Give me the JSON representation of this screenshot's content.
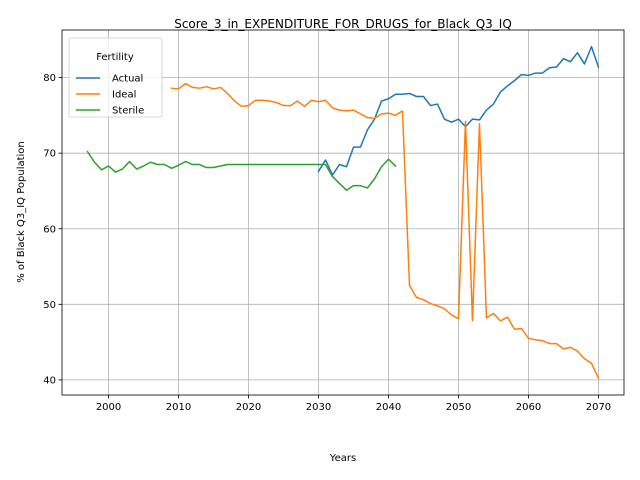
{
  "chart_data": {
    "type": "line",
    "title": "Score_3_in_EXPENDITURE_FOR_DRUGS_for_Black_Q3_IQ",
    "xlabel": "Years",
    "ylabel": "% of Black Q3_IQ Population",
    "xlim": [
      1993.35,
      2073.65
    ],
    "ylim": [
      38.0,
      86.3
    ],
    "xticks": [
      2000,
      2010,
      2020,
      2030,
      2040,
      2050,
      2060,
      2070
    ],
    "yticks": [
      40,
      50,
      60,
      70,
      80
    ],
    "grid": true,
    "legend": {
      "title": "Fertility",
      "position": "upper-left"
    },
    "series": [
      {
        "name": "Actual",
        "color": "#1f77b4",
        "x": [
          2030,
          2031,
          2032,
          2033,
          2034,
          2035,
          2036,
          2037,
          2038,
          2039,
          2040,
          2041,
          2042,
          2043,
          2044,
          2045,
          2046,
          2047,
          2048,
          2049,
          2050,
          2051,
          2052,
          2053,
          2054,
          2055,
          2056,
          2057,
          2058,
          2059,
          2060,
          2061,
          2062,
          2063,
          2064,
          2065,
          2066,
          2067,
          2068,
          2069,
          2070
        ],
        "y": [
          67.6,
          69.1,
          67.1,
          68.5,
          68.2,
          70.8,
          70.8,
          73.1,
          74.5,
          76.9,
          77.2,
          77.8,
          77.8,
          77.9,
          77.5,
          77.5,
          76.3,
          76.5,
          74.5,
          74.1,
          74.5,
          73.5,
          74.5,
          74.4,
          75.7,
          76.5,
          78.1,
          78.9,
          79.6,
          80.4,
          80.3,
          80.6,
          80.6,
          81.3,
          81.4,
          82.5,
          82.1,
          83.3,
          81.8,
          84.1,
          81.4
        ]
      },
      {
        "name": "Ideal",
        "color": "#ff7f0e",
        "x": [
          2009,
          2010,
          2011,
          2012,
          2013,
          2014,
          2015,
          2016,
          2017,
          2018,
          2019,
          2020,
          2021,
          2022,
          2023,
          2024,
          2025,
          2026,
          2027,
          2028,
          2029,
          2030,
          2031,
          2032,
          2033,
          2034,
          2035,
          2036,
          2037,
          2038,
          2039,
          2040,
          2041,
          2042,
          2043,
          2044,
          2045,
          2046,
          2047,
          2048,
          2049,
          2050,
          2051,
          2052,
          2053,
          2054,
          2055,
          2056,
          2057,
          2058,
          2059,
          2060,
          2061,
          2062,
          2063,
          2064,
          2065,
          2066,
          2067,
          2068,
          2069,
          2070
        ],
        "y": [
          78.6,
          78.5,
          79.2,
          78.7,
          78.6,
          78.8,
          78.5,
          78.7,
          77.9,
          76.9,
          76.2,
          76.3,
          77.0,
          77.0,
          76.9,
          76.7,
          76.3,
          76.3,
          76.9,
          76.2,
          77.0,
          76.8,
          77.0,
          76.0,
          75.7,
          75.6,
          75.7,
          75.2,
          74.7,
          74.6,
          75.2,
          75.3,
          75.0,
          75.6,
          52.5,
          50.9,
          50.6,
          50.1,
          49.8,
          49.4,
          48.6,
          48.1,
          74.2,
          47.8,
          73.9,
          48.2,
          48.8,
          47.8,
          48.3,
          46.7,
          46.8,
          45.5,
          45.3,
          45.2,
          44.8,
          44.8,
          44.1,
          44.3,
          43.8,
          42.8,
          42.2,
          40.2
        ]
      },
      {
        "name": "Sterile",
        "color": "#2ca02c",
        "x": [
          1997,
          1998,
          1999,
          2000,
          2001,
          2002,
          2003,
          2004,
          2005,
          2006,
          2007,
          2008,
          2009,
          2010,
          2011,
          2012,
          2013,
          2014,
          2015,
          2016,
          2017,
          2018,
          2019,
          2020,
          2021,
          2022,
          2023,
          2024,
          2025,
          2026,
          2027,
          2028,
          2029,
          2030,
          2031,
          2032,
          2033,
          2034,
          2035,
          2036,
          2037,
          2038,
          2039,
          2040,
          2041
        ],
        "y": [
          70.2,
          68.8,
          67.8,
          68.3,
          67.5,
          67.9,
          68.9,
          67.9,
          68.3,
          68.8,
          68.5,
          68.5,
          68.0,
          68.4,
          68.9,
          68.5,
          68.5,
          68.1,
          68.1,
          68.3,
          68.5,
          68.5,
          68.5,
          68.5,
          68.5,
          68.5,
          68.5,
          68.5,
          68.5,
          68.5,
          68.5,
          68.5,
          68.5,
          68.5,
          68.5,
          66.9,
          66.0,
          65.1,
          65.7,
          65.7,
          65.4,
          66.6,
          68.2,
          69.2,
          68.3
        ]
      }
    ]
  }
}
